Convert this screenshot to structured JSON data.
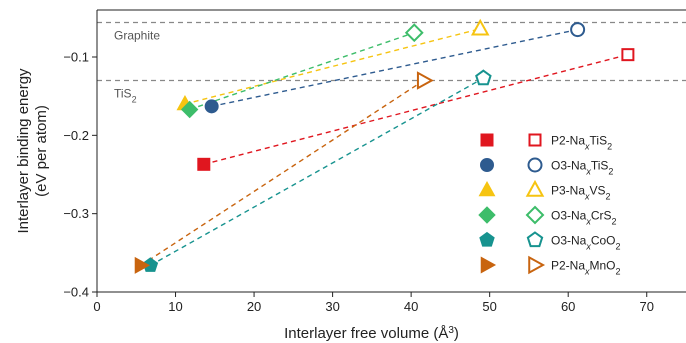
{
  "chart_data": {
    "type": "scatter",
    "xlabel": "Interlayer free volume (Å",
    "xlabel_sup": "3",
    "xlabel_end": ")",
    "ylabel_line1": "Interlayer binding energy",
    "ylabel_line2": "(eV per atom)",
    "xlim": [
      0,
      75
    ],
    "ylim": [
      -0.4,
      -0.04
    ],
    "xticks": [
      0,
      10,
      20,
      30,
      40,
      50,
      60,
      70
    ],
    "yticks": [
      -0.4,
      -0.3,
      -0.2,
      -0.1
    ],
    "ytick_labels": [
      "−0.4",
      "−0.3",
      "−0.2",
      "−0.1"
    ],
    "grid": false,
    "legend_position": "right",
    "reference_lines": [
      {
        "label": "Graphite",
        "y": -0.056
      },
      {
        "label": "TiS",
        "label_sub": "2",
        "y": -0.13
      }
    ],
    "series": [
      {
        "name_parts": [
          "P2-Na",
          "x",
          "TiS",
          "2"
        ],
        "marker": "square",
        "color": "#e0161f",
        "x": [
          13.6,
          67.6
        ],
        "y": [
          -0.237,
          -0.097
        ]
      },
      {
        "name_parts": [
          "O3-Na",
          "x",
          "TiS",
          "2"
        ],
        "marker": "circle",
        "color": "#2e5b8f",
        "x": [
          14.6,
          61.2
        ],
        "y": [
          -0.163,
          -0.065
        ]
      },
      {
        "name_parts": [
          "P3-Na",
          "x",
          "VS",
          "2"
        ],
        "marker": "triangle",
        "color": "#f6c411",
        "x": [
          11.2,
          48.8
        ],
        "y": [
          -0.16,
          -0.064
        ]
      },
      {
        "name_parts": [
          "O3-Na",
          "x",
          "CrS",
          "2"
        ],
        "marker": "diamond",
        "color": "#3dbd6a",
        "x": [
          11.8,
          40.4
        ],
        "y": [
          -0.167,
          -0.069
        ]
      },
      {
        "name_parts": [
          "O3-Na",
          "x",
          "CoO",
          "2"
        ],
        "marker": "pentagon",
        "color": "#17938f",
        "x": [
          6.8,
          49.2
        ],
        "y": [
          -0.366,
          -0.127
        ]
      },
      {
        "name_parts": [
          "P2-Na",
          "x",
          "MnO",
          "2"
        ],
        "marker": "triangle-right",
        "color": "#c8640f",
        "x": [
          5.6,
          41.6
        ],
        "y": [
          -0.366,
          -0.13
        ]
      }
    ]
  }
}
